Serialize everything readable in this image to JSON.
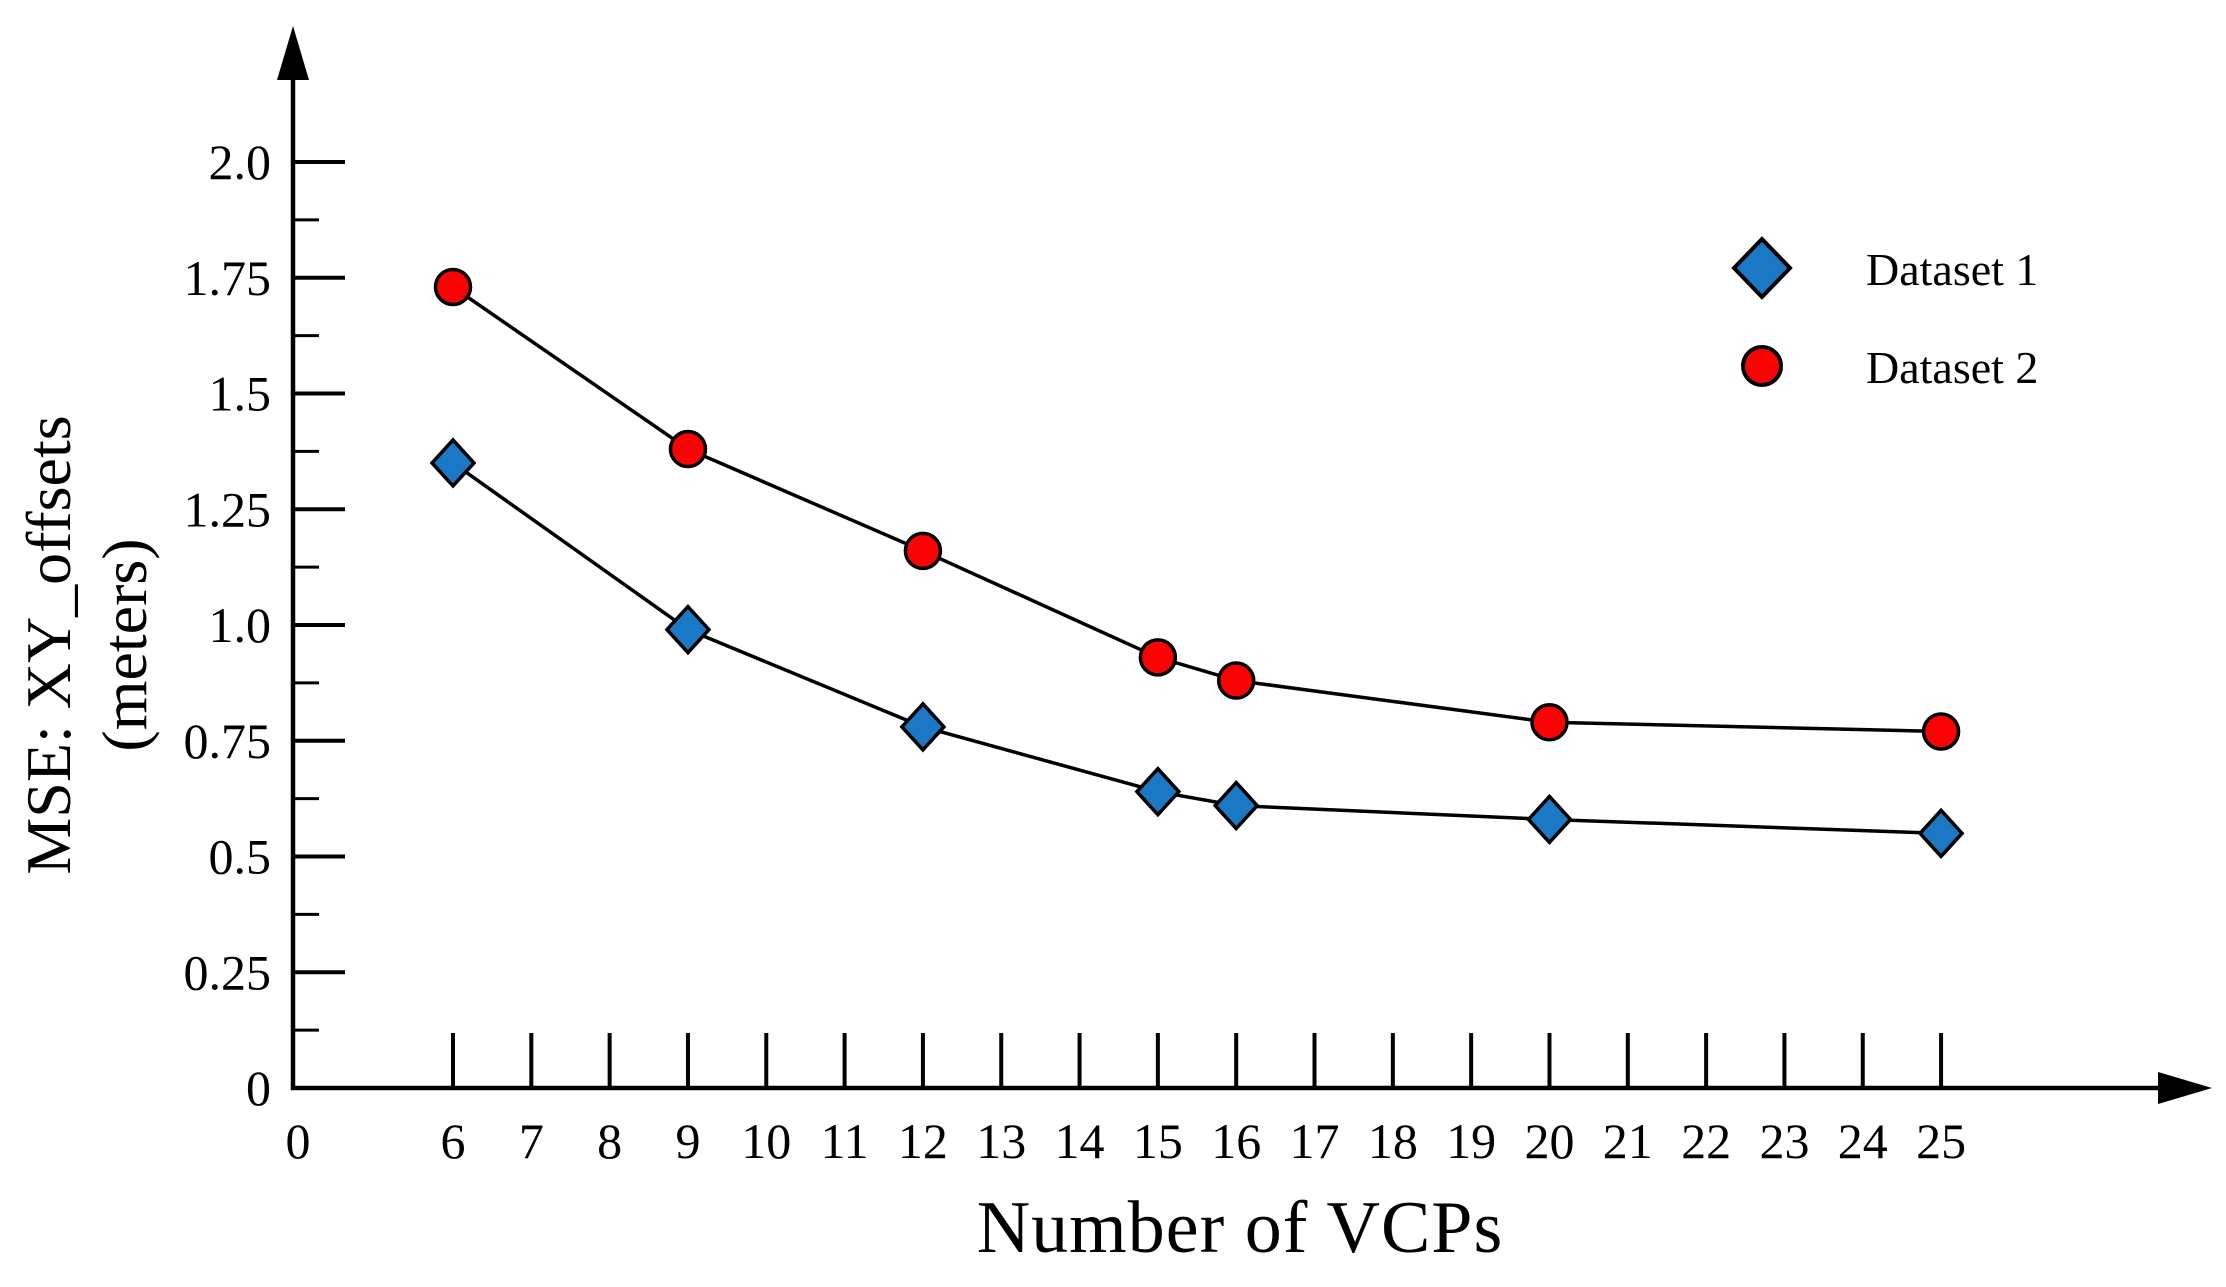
{
  "chart_data": {
    "type": "line",
    "title": "",
    "xlabel": "Number of VCPs",
    "ylabel_lines": [
      "MSE: XY_offsets",
      "(meters)"
    ],
    "x": [
      6,
      9,
      12,
      15,
      16,
      20,
      25
    ],
    "series": [
      {
        "name": "Dataset 1",
        "marker": "diamond",
        "marker_color": "#1B78C4",
        "line_color": "#000000",
        "values": [
          1.35,
          0.99,
          0.78,
          0.64,
          0.61,
          0.58,
          0.55
        ]
      },
      {
        "name": "Dataset 2",
        "marker": "circle",
        "marker_color": "#FC0303",
        "line_color": "#000000",
        "values": [
          1.73,
          1.38,
          1.16,
          0.93,
          0.88,
          0.79,
          0.77
        ]
      }
    ],
    "x_ticks": [
      6,
      7,
      8,
      9,
      10,
      11,
      12,
      13,
      14,
      15,
      16,
      17,
      18,
      19,
      20,
      21,
      22,
      23,
      24,
      25
    ],
    "x_origin_label": "0",
    "y_ticks": [
      {
        "v": 2.0,
        "label": "2.0"
      },
      {
        "v": 1.75,
        "label": "1.75"
      },
      {
        "v": 1.5,
        "label": "1.5"
      },
      {
        "v": 1.25,
        "label": "1.25"
      },
      {
        "v": 1.0,
        "label": "1.0"
      },
      {
        "v": 0.75,
        "label": "0.75"
      },
      {
        "v": 0.5,
        "label": "0.5"
      },
      {
        "v": 0.25,
        "label": "0.25"
      },
      {
        "v": 0,
        "label": "0"
      }
    ],
    "y_minor_step": 0.125,
    "xlim": [
      0,
      25
    ],
    "ylim": [
      0,
      2.2
    ],
    "grid": false,
    "legend": {
      "position": "upper right",
      "entries": [
        "Dataset 1",
        "Dataset 2"
      ]
    },
    "axis_color": "#000000"
  }
}
